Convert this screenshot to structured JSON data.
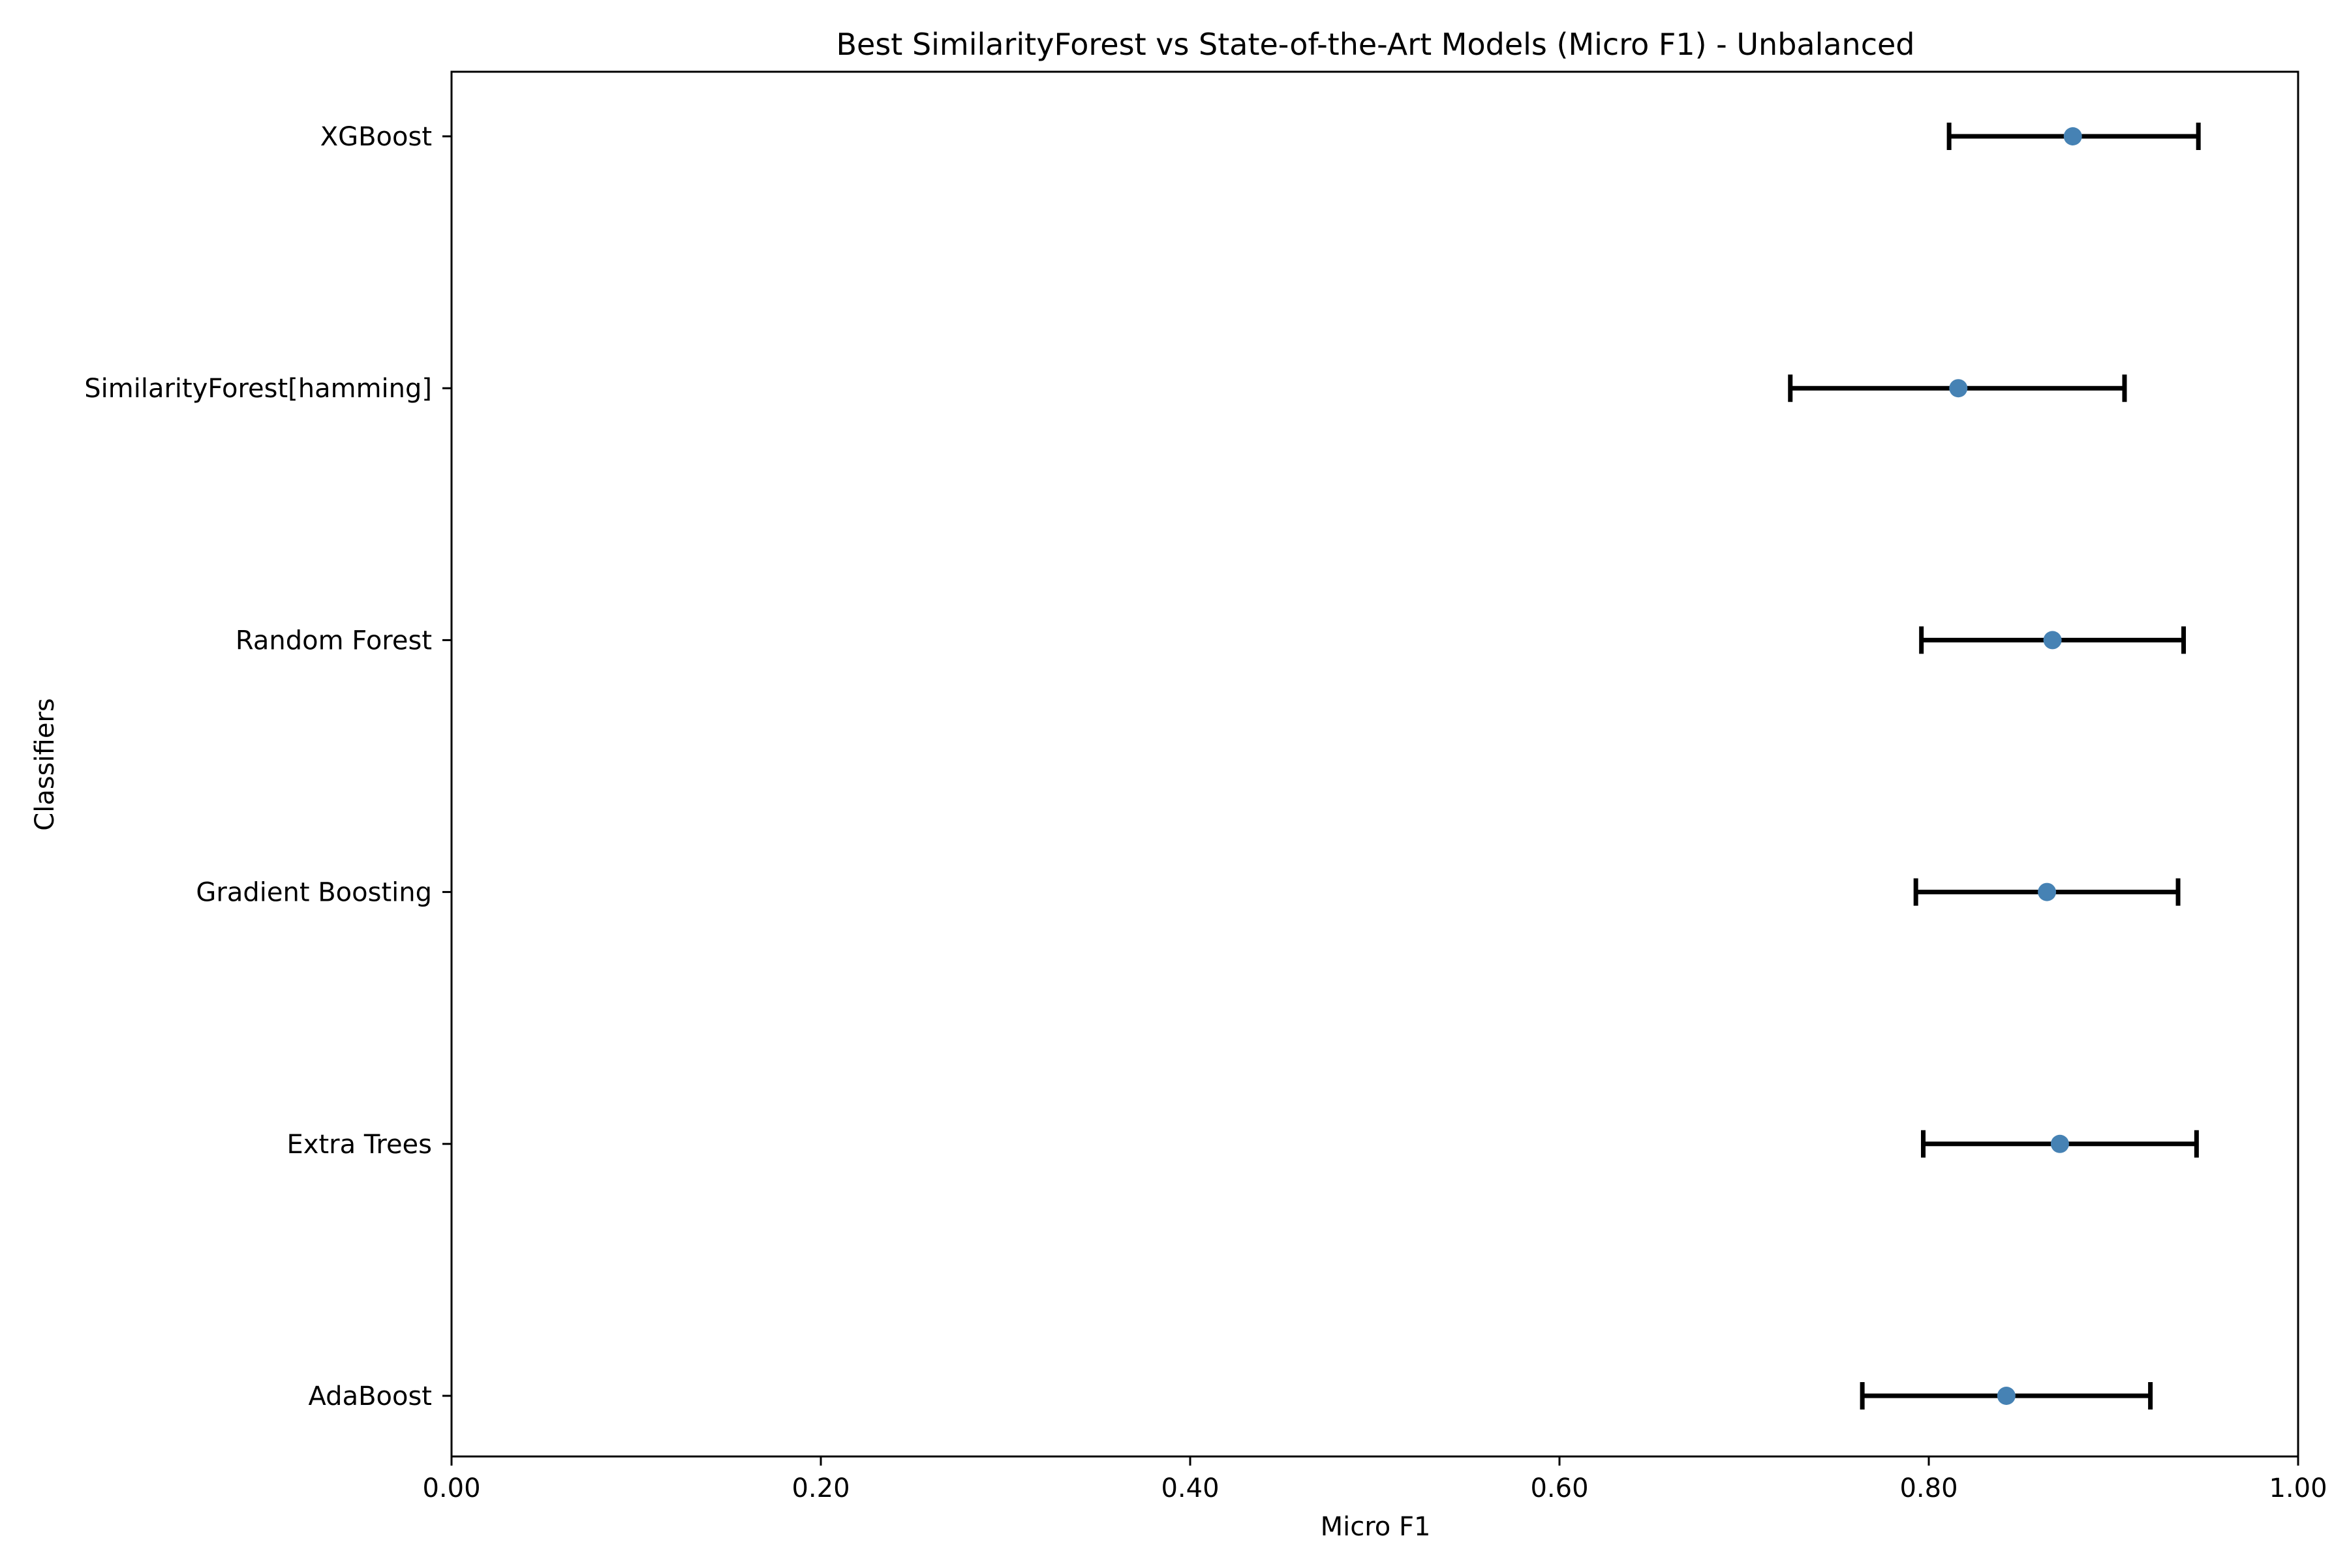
{
  "chart_data": {
    "type": "scatter",
    "title": "Best SimilarityForest vs State-of-the-Art Models (Micro F1) - Unbalanced",
    "xlabel": "Micro F1",
    "ylabel": "Classifiers",
    "xlim": [
      0.0,
      1.0
    ],
    "x_ticks": [
      "0.00",
      "0.20",
      "0.40",
      "0.60",
      "0.80",
      "1.00"
    ],
    "grid": false,
    "legend": "none",
    "series": [
      {
        "points": [
          {
            "category": "AdaBoost",
            "value": 0.842,
            "error_low": 0.764,
            "error_high": 0.92
          },
          {
            "category": "Extra Trees",
            "value": 0.871,
            "error_low": 0.797,
            "error_high": 0.945
          },
          {
            "category": "Gradient Boosting",
            "value": 0.864,
            "error_low": 0.793,
            "error_high": 0.935
          },
          {
            "category": "Random Forest",
            "value": 0.867,
            "error_low": 0.796,
            "error_high": 0.938
          },
          {
            "category": "SimilarityForest[hamming]",
            "value": 0.816,
            "error_low": 0.725,
            "error_high": 0.906
          },
          {
            "category": "XGBoost",
            "value": 0.878,
            "error_low": 0.811,
            "error_high": 0.946
          }
        ]
      }
    ],
    "colors": {
      "marker": "#4682b4",
      "errorbar": "#000000",
      "axes": "#000000"
    }
  }
}
